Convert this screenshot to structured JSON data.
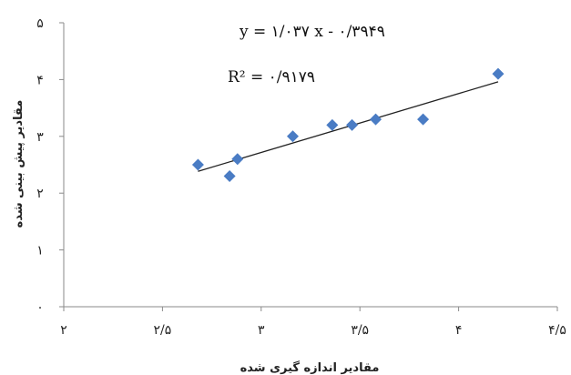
{
  "chart_data": {
    "type": "scatter",
    "title": "",
    "xlabel": "مقادیر اندازه گیری شده",
    "ylabel": "مقادیر پیش بینی شده",
    "xlim": [
      2,
      4.5
    ],
    "ylim": [
      0,
      5
    ],
    "x_ticks": [
      {
        "value": 2,
        "label": "۲"
      },
      {
        "value": 2.5,
        "label": "۲/۵"
      },
      {
        "value": 3,
        "label": "۳"
      },
      {
        "value": 3.5,
        "label": "۳/۵"
      },
      {
        "value": 4,
        "label": "۴"
      },
      {
        "value": 4.5,
        "label": "۴/۵"
      }
    ],
    "y_ticks": [
      {
        "value": 0,
        "label": "۰"
      },
      {
        "value": 1,
        "label": "۱"
      },
      {
        "value": 2,
        "label": "۲"
      },
      {
        "value": 3,
        "label": "۳"
      },
      {
        "value": 4,
        "label": "۴"
      },
      {
        "value": 5,
        "label": "۵"
      }
    ],
    "points": [
      {
        "x": 2.68,
        "y": 2.5
      },
      {
        "x": 2.84,
        "y": 2.3
      },
      {
        "x": 2.88,
        "y": 2.6
      },
      {
        "x": 3.16,
        "y": 3.0
      },
      {
        "x": 3.36,
        "y": 3.2
      },
      {
        "x": 3.46,
        "y": 3.2
      },
      {
        "x": 3.58,
        "y": 3.3
      },
      {
        "x": 3.82,
        "y": 3.3
      },
      {
        "x": 4.2,
        "y": 4.1
      }
    ],
    "trendline": {
      "slope": 1.037,
      "intercept": -0.3949,
      "x_range": [
        2.68,
        4.2
      ]
    },
    "annotations": {
      "equation": "y = ۱/۰۳۷ x - ۰/۳۹۴۹",
      "r_squared": "R² = ۰/۹۱۷۹"
    },
    "grid": false,
    "legend": "none",
    "colors": {
      "marker": "#4a7cc4",
      "trendline": "#222222",
      "axis": "#8a8a8a"
    }
  }
}
